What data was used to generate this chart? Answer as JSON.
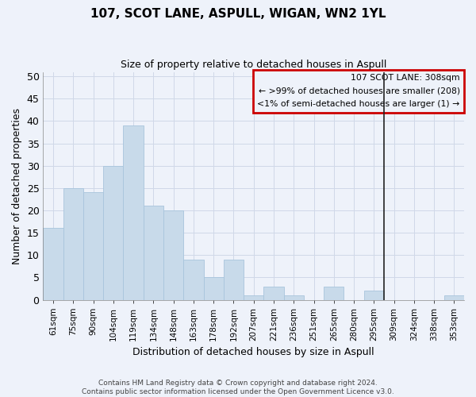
{
  "title": "107, SCOT LANE, ASPULL, WIGAN, WN2 1YL",
  "subtitle": "Size of property relative to detached houses in Aspull",
  "xlabel": "Distribution of detached houses by size in Aspull",
  "ylabel": "Number of detached properties",
  "categories": [
    "61sqm",
    "75sqm",
    "90sqm",
    "104sqm",
    "119sqm",
    "134sqm",
    "148sqm",
    "163sqm",
    "178sqm",
    "192sqm",
    "207sqm",
    "221sqm",
    "236sqm",
    "251sqm",
    "265sqm",
    "280sqm",
    "295sqm",
    "309sqm",
    "324sqm",
    "338sqm",
    "353sqm"
  ],
  "values": [
    16,
    25,
    24,
    30,
    39,
    21,
    20,
    9,
    5,
    9,
    1,
    3,
    1,
    0,
    3,
    0,
    2,
    0,
    0,
    0,
    1
  ],
  "bar_color": "#c8daea",
  "bar_edgecolor": "#a8c4dc",
  "grid_color": "#d0d8e8",
  "background_color": "#eef2fa",
  "vline_x_index": 16,
  "vline_color": "#222222",
  "legend_title": "107 SCOT LANE: 308sqm",
  "legend_line1": "← >99% of detached houses are smaller (208)",
  "legend_line2": "<1% of semi-detached houses are larger (1) →",
  "legend_box_color": "#cc0000",
  "ylim": [
    0,
    51
  ],
  "yticks": [
    0,
    5,
    10,
    15,
    20,
    25,
    30,
    35,
    40,
    45,
    50
  ],
  "footer1": "Contains HM Land Registry data © Crown copyright and database right 2024.",
  "footer2": "Contains public sector information licensed under the Open Government Licence v3.0."
}
